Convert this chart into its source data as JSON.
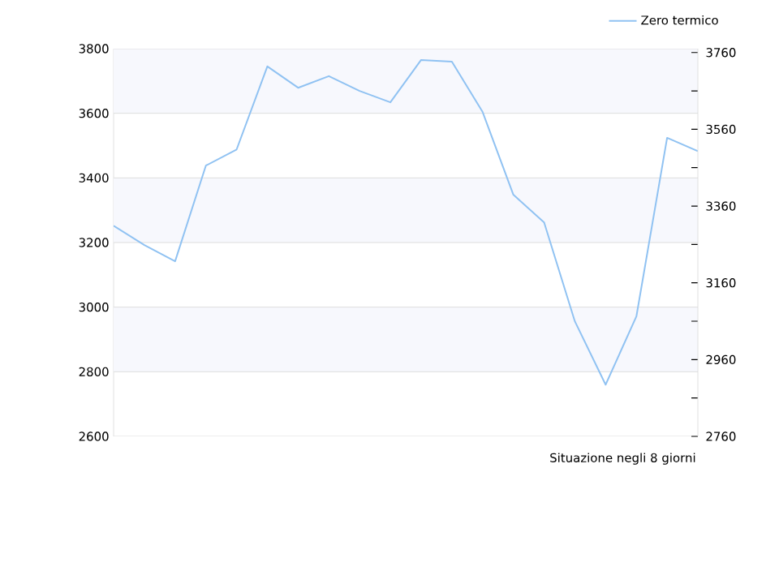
{
  "chart_data": {
    "type": "line",
    "xlabel": "Situazione negli 8 giorni",
    "categories": [
      null,
      null,
      null,
      null,
      null,
      null,
      null,
      null,
      null,
      null,
      null,
      null,
      null,
      null,
      null,
      null,
      null,
      null,
      null,
      null
    ],
    "series": [
      {
        "name": "Zero termico",
        "color": "#90c2f2",
        "values": [
          3252,
          3192,
          3142,
          3438,
          3488,
          3745,
          3679,
          3715,
          3669,
          3634,
          3765,
          3760,
          3604,
          3348,
          3262,
          2956,
          2760,
          2971,
          3524,
          3483
        ]
      }
    ],
    "ylim": [
      2600,
      3800
    ],
    "yticks": [
      2600,
      2800,
      3000,
      3200,
      3400,
      3600,
      3800
    ],
    "y2lim": [
      2760,
      3770
    ],
    "y2ticks": [
      2760,
      {
        "value": 2860,
        "label": null
      },
      2960,
      {
        "value": 3060,
        "label": null
      },
      3160,
      {
        "value": 3260,
        "label": null
      },
      3360,
      {
        "value": 3460,
        "label": null
      },
      3560,
      {
        "value": 3660,
        "label": null
      },
      3760
    ],
    "bands": [
      {
        "axis": "y",
        "from": 3600,
        "to": 3800,
        "color": "#f7f8fd"
      },
      {
        "axis": "y",
        "from": 3200,
        "to": 3400,
        "color": "#f7f8fd"
      },
      {
        "axis": "y",
        "from": 2800,
        "to": 3000,
        "color": "#f7f8fd"
      }
    ],
    "grid": "y",
    "legend": "top right",
    "marker": "none",
    "line_style": "solid"
  }
}
